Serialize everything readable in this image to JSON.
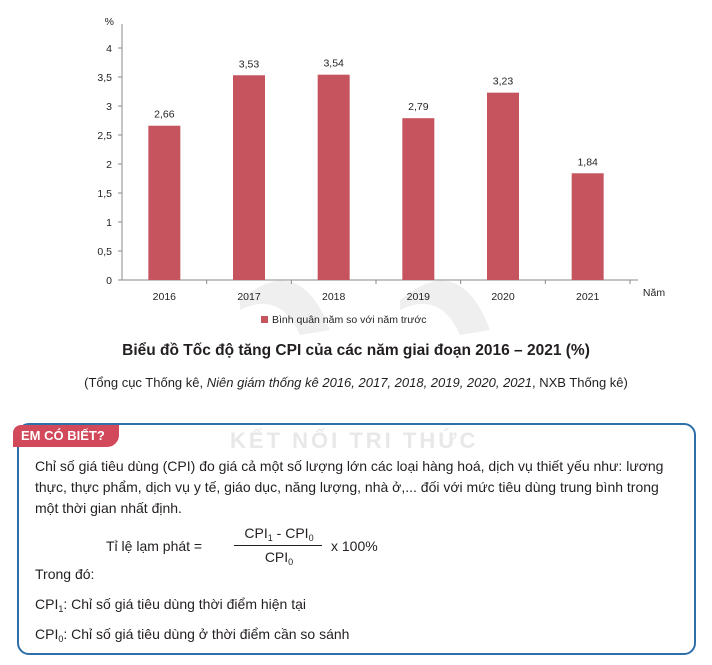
{
  "chart_data": {
    "type": "bar",
    "unit_label": "%",
    "x_axis_label": "Năm",
    "categories": [
      "2016",
      "2017",
      "2018",
      "2019",
      "2020",
      "2021"
    ],
    "values": [
      2.66,
      3.53,
      3.54,
      2.79,
      3.23,
      1.84
    ],
    "value_labels": [
      "2,66",
      "3,53",
      "3,54",
      "2,79",
      "3,23",
      "1,84"
    ],
    "y_ticks": [
      {
        "value": 0,
        "label": "0"
      },
      {
        "value": 0.5,
        "label": "0,5"
      },
      {
        "value": 1,
        "label": "1"
      },
      {
        "value": 1.5,
        "label": "1,5"
      },
      {
        "value": 2,
        "label": "2"
      },
      {
        "value": 2.5,
        "label": "2,5"
      },
      {
        "value": 3,
        "label": "3"
      },
      {
        "value": 3.5,
        "label": "3,5"
      },
      {
        "value": 4,
        "label": "4"
      }
    ],
    "ylim": [
      0,
      4
    ],
    "series_name": "Bình quân năm so với năm trước",
    "bar_color": "#c5545f",
    "grid": false,
    "legend_position": "bottom"
  },
  "caption": {
    "title": "Biểu đồ Tốc độ tăng CPI của các năm giai đoạn 2016 – 2021 (%)",
    "source_prefix": "(Tổng cục Thống kê, ",
    "source_italic": "Niên giám thống kê 2016, 2017, 2018, 2019, 2020, 2021",
    "source_suffix": ", NXB Thống kê)"
  },
  "info_box": {
    "badge": "EM CÓ BIẾT?",
    "watermark": "KẾT NỐI TRI THỨC",
    "paragraph": "Chỉ số giá tiêu dùng (CPI) đo giá cả một số lượng lớn các loại hàng hoá, dịch vụ thiết yếu như: lương thực, thực phẩm, dịch vụ y tế, giáo dục, năng lượng, nhà ở,... đối với mức tiêu dùng trung bình trong một thời gian nhất định.",
    "formula_lhs": "Tỉ lệ lạm phát  =",
    "formula_num_a": "CPI",
    "formula_num_a_sub": "1",
    "formula_num_mid": " - CPI",
    "formula_num_b_sub": "0",
    "formula_den": "CPI",
    "formula_den_sub": "0",
    "formula_rhs": "x 100%",
    "where": "Trong đó:",
    "def1_sym": "CPI",
    "def1_sub": "1",
    "def1_text": ":  Chỉ số giá tiêu dùng thời điểm hiện tại",
    "def2_sym": "CPI",
    "def2_sub": "0",
    "def2_text": ": Chỉ số giá tiêu dùng ở thời điểm cần so sánh"
  },
  "colors": {
    "bar": "#c5545f",
    "badge": "#d1495b",
    "box_border": "#2e6fa8",
    "axis": "#8a8a8a"
  }
}
